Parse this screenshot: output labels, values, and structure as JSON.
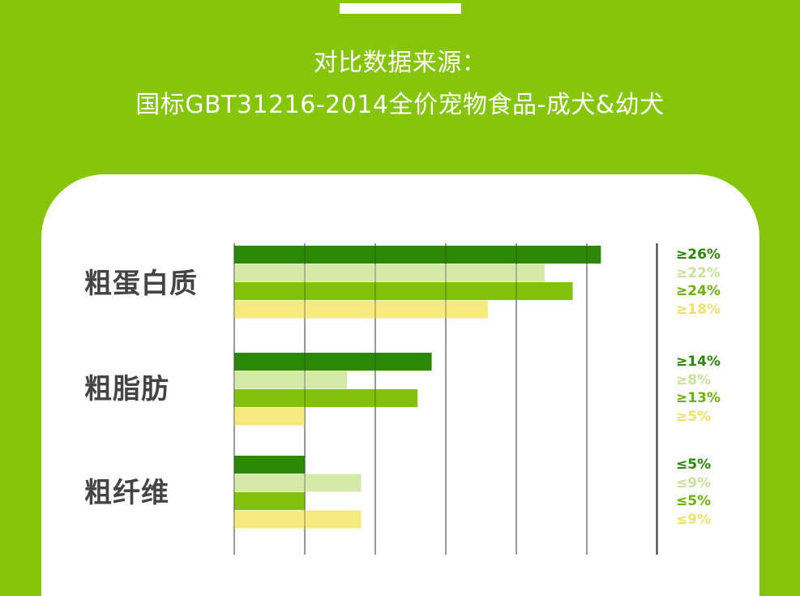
{
  "header": {
    "line1": "对比数据来源：",
    "line2": "国标GBT31216-2014全价宠物食品-成犬&幼犬"
  },
  "colors": {
    "background": "#85c50a",
    "card": "#ffffff",
    "gridline": "#333333",
    "series": [
      "#2b8704",
      "#d5e9a8",
      "#83c20b",
      "#f5ea7e"
    ],
    "labels": [
      "#2b8704",
      "#c9e29a",
      "#6db10a",
      "#f0e06c"
    ]
  },
  "chart_data": {
    "type": "bar",
    "orientation": "horizontal",
    "categories": [
      "粗蛋白质",
      "粗脂肪",
      "粗纤维"
    ],
    "series": [
      {
        "values": [
          26,
          14,
          5
        ]
      },
      {
        "values": [
          22,
          8,
          9
        ]
      },
      {
        "values": [
          24,
          13,
          5
        ]
      },
      {
        "values": [
          18,
          5,
          9
        ]
      }
    ],
    "value_labels": [
      [
        "≥26%",
        "≥22%",
        "≥24%",
        "≥18%"
      ],
      [
        "≥14%",
        "≥8%",
        "≥13%",
        "≥5%"
      ],
      [
        "≤5%",
        "≤9%",
        "≤5%",
        "≤9%"
      ]
    ],
    "xlim": [
      0,
      30
    ],
    "grid": true,
    "title": "",
    "xlabel": "",
    "ylabel": ""
  }
}
